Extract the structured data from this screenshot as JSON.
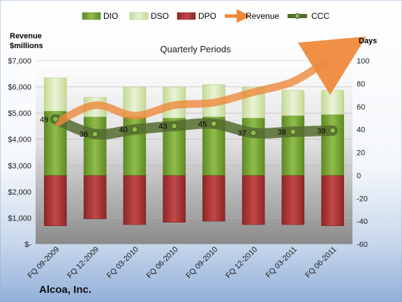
{
  "chart_data": {
    "type": "bar",
    "title": "Quarterly Periods",
    "company": "Alcoa, Inc.",
    "left_axis_title_line1": "Revenue",
    "left_axis_title_line2": "$millions",
    "right_axis_title": "Days",
    "categories": [
      "FQ 09-2009",
      "FQ 12-2009",
      "FQ 03-2010",
      "FQ 06-2010",
      "FQ 09-2010",
      "FQ 12-2010",
      "FQ 03-2011",
      "FQ 06-2011"
    ],
    "left_ticks": [
      "$-",
      "$1,000",
      "$2,000",
      "$3,000",
      "$4,000",
      "$5,000",
      "$6,000",
      "$7,000"
    ],
    "right_ticks": [
      "-60",
      "-40",
      "-20",
      "0",
      "20",
      "40",
      "60",
      "80",
      "100"
    ],
    "left_ylim": [
      0,
      7000
    ],
    "right_ylim": [
      -60,
      100
    ],
    "legend": [
      "DIO",
      "DSO",
      "DPO",
      "Revenue",
      "CCC"
    ],
    "series": [
      {
        "name": "DIO",
        "axis": "right",
        "values": [
          56,
          51,
          51,
          50,
          51,
          50,
          52,
          53
        ],
        "color": "#77a533"
      },
      {
        "name": "DSO",
        "axis": "right",
        "values": [
          29,
          17,
          26,
          27,
          28,
          27,
          22,
          21
        ],
        "color": "#d6e6b4"
      },
      {
        "name": "DPO",
        "axis": "right",
        "values": [
          -44,
          -38,
          -43,
          -41,
          -40,
          -43,
          -43,
          -44
        ],
        "color": "#b83838"
      },
      {
        "name": "Revenue",
        "axis": "left",
        "values": [
          4600,
          5300,
          4900,
          5300,
          5400,
          5800,
          6200,
          7000
        ],
        "color": "#ee8a3c"
      },
      {
        "name": "CCC",
        "axis": "right",
        "values": [
          49,
          36,
          40,
          43,
          45,
          37,
          38,
          39
        ],
        "color": "#556b2f"
      }
    ],
    "ccc_labels": [
      "49",
      "36",
      "40",
      "43",
      "45",
      "37",
      "38",
      "39"
    ]
  }
}
